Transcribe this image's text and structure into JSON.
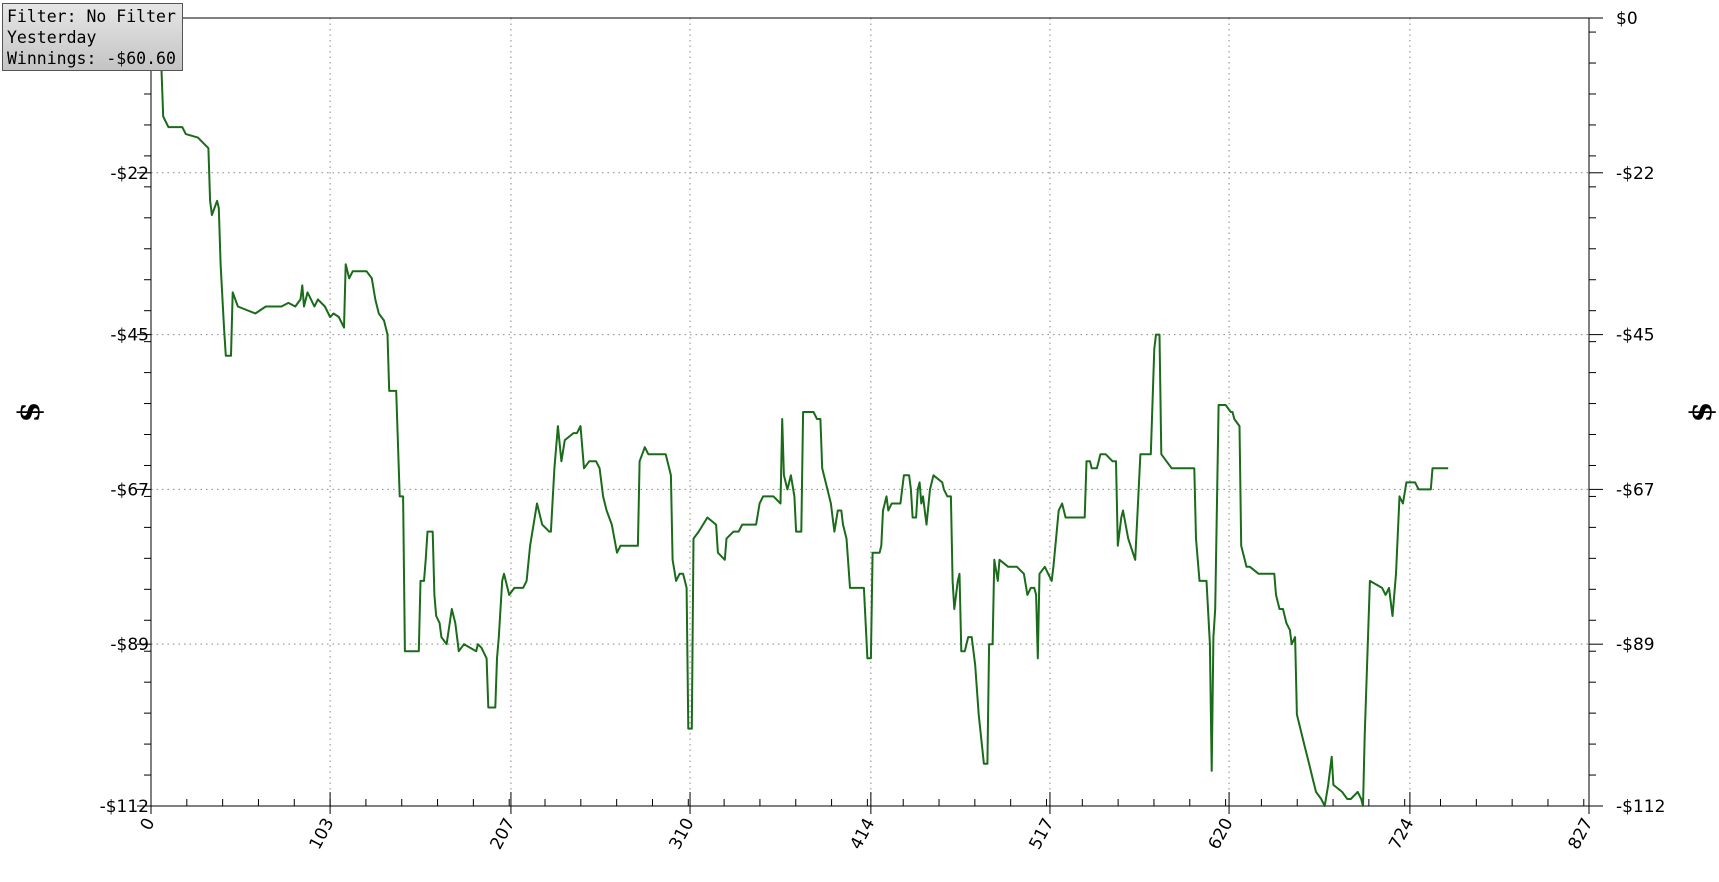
{
  "info_box": {
    "filter": "Filter: No Filter",
    "period": "Yesterday",
    "winnings": "Winnings: -$60.60"
  },
  "colors": {
    "line": "#1a6b1a",
    "grid": "#888888",
    "axis": "#000000"
  },
  "chart_data": {
    "type": "line",
    "ylabel_left": "$",
    "ylabel_right": "$",
    "xlim": [
      0,
      827
    ],
    "ylim": [
      -112,
      0
    ],
    "grid": true,
    "x_ticks": [
      0,
      103,
      207,
      310,
      414,
      517,
      620,
      724,
      827
    ],
    "x_tick_labels": [
      "0",
      "103",
      "207",
      "310",
      "414",
      "517",
      "620",
      "724",
      "827"
    ],
    "y_ticks": [
      0,
      -22,
      -45,
      -67,
      -89,
      -112
    ],
    "y_tick_labels_left": [
      "",
      "-$22",
      "-$45",
      "-$67",
      "-$89",
      "-$112"
    ],
    "y_tick_labels_right": [
      "$0",
      "-$22",
      "-$45",
      "-$67",
      "-$89",
      "-$112"
    ],
    "series": [
      {
        "values": [
          [
            0,
            0
          ],
          [
            4,
            -3
          ],
          [
            6,
            -7
          ],
          [
            7,
            -14
          ],
          [
            10,
            -15.5
          ],
          [
            18,
            -15.5
          ],
          [
            20,
            -16.5
          ],
          [
            27,
            -17
          ],
          [
            33,
            -18.5
          ],
          [
            34,
            -26
          ],
          [
            35,
            -28
          ],
          [
            38,
            -26
          ],
          [
            39,
            -27
          ],
          [
            40,
            -35
          ],
          [
            42,
            -44
          ],
          [
            43,
            -48
          ],
          [
            46,
            -48
          ],
          [
            47,
            -39
          ],
          [
            50,
            -41
          ],
          [
            55,
            -41.5
          ],
          [
            60,
            -42
          ],
          [
            66,
            -41
          ],
          [
            75,
            -41
          ],
          [
            79,
            -40.5
          ],
          [
            83,
            -41
          ],
          [
            86,
            -40
          ],
          [
            87,
            -38
          ],
          [
            88,
            -41
          ],
          [
            90,
            -39
          ],
          [
            92,
            -40
          ],
          [
            94,
            -41
          ],
          [
            96,
            -40
          ],
          [
            100,
            -41
          ],
          [
            103,
            -42.5
          ],
          [
            105,
            -42
          ],
          [
            108,
            -42.5
          ],
          [
            111,
            -44
          ],
          [
            112,
            -35
          ],
          [
            114,
            -37
          ],
          [
            116,
            -36
          ],
          [
            124,
            -36
          ],
          [
            127,
            -37
          ],
          [
            129,
            -40
          ],
          [
            131,
            -42
          ],
          [
            134,
            -43
          ],
          [
            136,
            -45
          ],
          [
            137,
            -53
          ],
          [
            141,
            -53
          ],
          [
            143,
            -68
          ],
          [
            145,
            -68
          ],
          [
            146,
            -90
          ],
          [
            150,
            -90
          ],
          [
            154,
            -90
          ],
          [
            155,
            -80
          ],
          [
            157,
            -80
          ],
          [
            158,
            -77
          ],
          [
            159,
            -73
          ],
          [
            162,
            -73
          ],
          [
            163,
            -82
          ],
          [
            164,
            -85
          ],
          [
            166,
            -86
          ],
          [
            167,
            -88
          ],
          [
            170,
            -89
          ],
          [
            173,
            -84
          ],
          [
            175,
            -86
          ],
          [
            177,
            -90
          ],
          [
            180,
            -89
          ],
          [
            187,
            -90
          ],
          [
            188,
            -89
          ],
          [
            190,
            -89.5
          ],
          [
            193,
            -91
          ],
          [
            194,
            -98
          ],
          [
            196,
            -98
          ],
          [
            198,
            -98
          ],
          [
            199,
            -91
          ],
          [
            200,
            -88
          ],
          [
            202,
            -80
          ],
          [
            203,
            -79
          ],
          [
            206,
            -82
          ],
          [
            209,
            -81
          ],
          [
            214,
            -81
          ],
          [
            216,
            -80
          ],
          [
            218,
            -75
          ],
          [
            222,
            -69
          ],
          [
            225,
            -72
          ],
          [
            229,
            -73
          ],
          [
            230,
            -73
          ],
          [
            232,
            -64
          ],
          [
            234,
            -58
          ],
          [
            236,
            -63
          ],
          [
            238,
            -60
          ],
          [
            243,
            -59
          ],
          [
            245,
            -59
          ],
          [
            247,
            -58
          ],
          [
            249,
            -64
          ],
          [
            252,
            -63
          ],
          [
            256,
            -63
          ],
          [
            258,
            -64
          ],
          [
            260,
            -68
          ],
          [
            262,
            -70
          ],
          [
            265,
            -72
          ],
          [
            268,
            -76
          ],
          [
            270,
            -75
          ],
          [
            280,
            -75
          ],
          [
            281,
            -63
          ],
          [
            284,
            -61
          ],
          [
            286,
            -62
          ],
          [
            296,
            -62
          ],
          [
            299,
            -65
          ],
          [
            300,
            -77
          ],
          [
            302,
            -80
          ],
          [
            304,
            -79
          ],
          [
            306,
            -79
          ],
          [
            308,
            -81
          ],
          [
            309,
            -101
          ],
          [
            311,
            -101
          ],
          [
            312,
            -74
          ],
          [
            315,
            -73
          ],
          [
            320,
            -71
          ],
          [
            325,
            -72
          ],
          [
            326,
            -76
          ],
          [
            330,
            -77
          ],
          [
            331,
            -74
          ],
          [
            335,
            -73
          ],
          [
            338,
            -73
          ],
          [
            340,
            -72
          ],
          [
            348,
            -72
          ],
          [
            350,
            -69
          ],
          [
            352,
            -68
          ],
          [
            358,
            -68
          ],
          [
            362,
            -69
          ],
          [
            363,
            -57
          ],
          [
            364,
            -65
          ],
          [
            366,
            -67
          ],
          [
            368,
            -65
          ],
          [
            370,
            -68
          ],
          [
            371,
            -73
          ],
          [
            374,
            -73
          ],
          [
            375,
            -56
          ],
          [
            381,
            -56
          ],
          [
            383,
            -57
          ],
          [
            385,
            -57
          ],
          [
            386,
            -64
          ],
          [
            388,
            -66
          ],
          [
            391,
            -69
          ],
          [
            392,
            -71
          ],
          [
            393,
            -73
          ],
          [
            395,
            -70
          ],
          [
            397,
            -70
          ],
          [
            398,
            -72
          ],
          [
            400,
            -74
          ],
          [
            402,
            -81
          ],
          [
            410,
            -81
          ],
          [
            412,
            -91
          ],
          [
            414,
            -91
          ],
          [
            415,
            -76
          ],
          [
            419,
            -76
          ],
          [
            420,
            -75
          ],
          [
            421,
            -70
          ],
          [
            423,
            -68
          ],
          [
            424,
            -70
          ],
          [
            426,
            -69
          ],
          [
            431,
            -69
          ],
          [
            433,
            -65
          ],
          [
            436,
            -65
          ],
          [
            437,
            -67
          ],
          [
            438,
            -71
          ],
          [
            440,
            -71
          ],
          [
            441,
            -67
          ],
          [
            442,
            -66
          ],
          [
            443,
            -69
          ],
          [
            444,
            -68
          ],
          [
            446,
            -72
          ],
          [
            448,
            -67
          ],
          [
            450,
            -65
          ],
          [
            455,
            -66
          ],
          [
            456,
            -67
          ],
          [
            458,
            -68
          ],
          [
            460,
            -68
          ],
          [
            461,
            -80
          ],
          [
            462,
            -84
          ],
          [
            464,
            -80
          ],
          [
            465,
            -79
          ],
          [
            466,
            -90
          ],
          [
            468,
            -90
          ],
          [
            470,
            -88
          ],
          [
            472,
            -88
          ],
          [
            474,
            -92
          ],
          [
            476,
            -99
          ],
          [
            479,
            -106
          ],
          [
            481,
            -106
          ],
          [
            482,
            -89
          ],
          [
            484,
            -89
          ],
          [
            485,
            -77
          ],
          [
            487,
            -80
          ],
          [
            488,
            -77
          ],
          [
            493,
            -78
          ],
          [
            498,
            -78
          ],
          [
            502,
            -79
          ],
          [
            504,
            -82
          ],
          [
            506,
            -81
          ],
          [
            508,
            -81
          ],
          [
            509,
            -82
          ],
          [
            510,
            -91
          ],
          [
            511,
            -79
          ],
          [
            514,
            -78
          ],
          [
            516,
            -79
          ],
          [
            518,
            -80
          ],
          [
            519,
            -78
          ],
          [
            522,
            -70
          ],
          [
            524,
            -69
          ],
          [
            526,
            -71
          ],
          [
            530,
            -71
          ],
          [
            537,
            -71
          ],
          [
            538,
            -63
          ],
          [
            540,
            -63
          ],
          [
            541,
            -64
          ],
          [
            544,
            -64
          ],
          [
            545,
            -63
          ],
          [
            546,
            -62
          ],
          [
            549,
            -62
          ],
          [
            553,
            -63
          ],
          [
            555,
            -63
          ],
          [
            556,
            -75
          ],
          [
            558,
            -71
          ],
          [
            559,
            -70
          ],
          [
            562,
            -74
          ],
          [
            566,
            -77
          ],
          [
            569,
            -62
          ],
          [
            575,
            -62
          ],
          [
            577,
            -47
          ],
          [
            578,
            -45
          ],
          [
            580,
            -45
          ],
          [
            581,
            -62
          ],
          [
            584,
            -63
          ],
          [
            587,
            -64
          ],
          [
            589,
            -64
          ],
          [
            595,
            -64
          ],
          [
            600,
            -64
          ],
          [
            601,
            -74
          ],
          [
            603,
            -80
          ],
          [
            607,
            -80
          ],
          [
            609,
            -89
          ],
          [
            610,
            -107
          ],
          [
            611,
            -88
          ],
          [
            612,
            -84
          ],
          [
            614,
            -55
          ],
          [
            618,
            -55
          ],
          [
            621,
            -56
          ],
          [
            622,
            -56
          ],
          [
            623,
            -57
          ],
          [
            626,
            -58
          ],
          [
            627,
            -75
          ],
          [
            630,
            -78
          ],
          [
            632,
            -78
          ],
          [
            637,
            -79
          ],
          [
            646,
            -79
          ],
          [
            647,
            -82
          ],
          [
            649,
            -84
          ],
          [
            651,
            -84
          ],
          [
            653,
            -86
          ],
          [
            655,
            -87
          ],
          [
            656,
            -89
          ],
          [
            658,
            -88
          ],
          [
            659,
            -99
          ],
          [
            663,
            -103
          ],
          [
            666,
            -106
          ],
          [
            668,
            -108
          ],
          [
            670,
            -110
          ],
          [
            673,
            -111
          ],
          [
            675,
            -112
          ],
          [
            677,
            -109
          ],
          [
            679,
            -105
          ],
          [
            680,
            -109
          ],
          [
            685,
            -110
          ],
          [
            688,
            -111
          ],
          [
            690,
            -111
          ],
          [
            694,
            -110
          ],
          [
            696,
            -111
          ],
          [
            697,
            -112
          ],
          [
            698,
            -102
          ],
          [
            701,
            -80
          ],
          [
            708,
            -81
          ],
          [
            710,
            -82
          ],
          [
            712,
            -81
          ],
          [
            714,
            -85
          ],
          [
            716,
            -79
          ],
          [
            718,
            -68
          ],
          [
            720,
            -69
          ],
          [
            722,
            -66
          ],
          [
            727,
            -66
          ],
          [
            729,
            -67
          ],
          [
            736,
            -67
          ],
          [
            737,
            -64
          ],
          [
            746,
            -64
          ]
        ]
      }
    ]
  }
}
